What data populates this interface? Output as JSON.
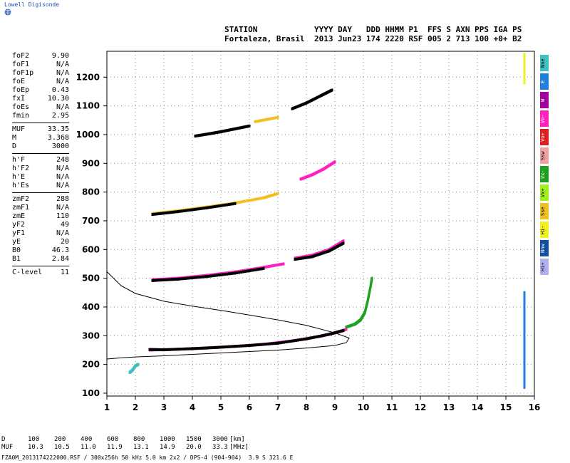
{
  "app": {
    "logo_text": "Lowell Digisonde"
  },
  "header": {
    "line1_label": "STATION",
    "line1_cols": "YYYY DAY   DDD HHMM P1  FFS S AXN PPS IGA PS",
    "station_name": "Fortaleza, Brasil",
    "line2_values": "2013 Jun23 174 2220 RSF 005 2 713 100 +0+ B2"
  },
  "params": {
    "group1": [
      {
        "name": "foF2",
        "value": "9.90"
      },
      {
        "name": "foF1",
        "value": "N/A"
      },
      {
        "name": "foF1p",
        "value": "N/A"
      },
      {
        "name": "foE",
        "value": "N/A"
      },
      {
        "name": "foEp",
        "value": "0.43"
      },
      {
        "name": "fxI",
        "value": "10.30"
      },
      {
        "name": "foEs",
        "value": "N/A"
      },
      {
        "name": "fmin",
        "value": "2.95"
      }
    ],
    "group2": [
      {
        "name": "MUF",
        "value": "33.35"
      },
      {
        "name": "M",
        "value": "3.368"
      },
      {
        "name": "D",
        "value": "3000"
      }
    ],
    "group3": [
      {
        "name": "h'F",
        "value": "248"
      },
      {
        "name": "h'F2",
        "value": "N/A"
      },
      {
        "name": "h'E",
        "value": "N/A"
      },
      {
        "name": "h'Es",
        "value": "N/A"
      }
    ],
    "group4": [
      {
        "name": "zmF2",
        "value": "288"
      },
      {
        "name": "zmF1",
        "value": "N/A"
      },
      {
        "name": "zmE",
        "value": "110"
      },
      {
        "name": "yF2",
        "value": "49"
      },
      {
        "name": "yF1",
        "value": "N/A"
      },
      {
        "name": "yE",
        "value": "20"
      },
      {
        "name": "B0",
        "value": "46.3"
      },
      {
        "name": "B1",
        "value": "2.84"
      }
    ],
    "group5": [
      {
        "name": "C-level",
        "value": "11"
      }
    ]
  },
  "legend": [
    {
      "label": "Nne",
      "color": "#40c0c0"
    },
    {
      "label": "E",
      "color": "#2080e0"
    },
    {
      "label": "W",
      "color": "#a000a0"
    },
    {
      "label": "Vo-",
      "color": "#ff20c0"
    },
    {
      "label": "Vo+",
      "color": "#e02020"
    },
    {
      "label": "Ssw",
      "color": "#f0a0a0"
    },
    {
      "label": "Vx-",
      "color": "#20a020"
    },
    {
      "label": "Vx+",
      "color": "#a0f020"
    },
    {
      "label": "Sse",
      "color": "#f0c020"
    },
    {
      "label": "Hi-",
      "color": "#f0f020"
    },
    {
      "label": "Nnw",
      "color": "#1050a0"
    },
    {
      "label": "Hi+",
      "color": "#b0b0f0"
    }
  ],
  "bottom": {
    "d_label": "D",
    "d_values": [
      "100",
      "200",
      "400",
      "600",
      "800",
      "1000",
      "1500",
      "3000"
    ],
    "d_unit": "[km]",
    "muf_label": "MUF",
    "muf_values": [
      "10.3",
      "10.5",
      "11.0",
      "11.9",
      "13.1",
      "14.9",
      "20.0",
      "33.3"
    ],
    "muf_unit": "[MHz]",
    "footer": "FZA0M_2013174222000.RSF / 300x256h 50 kHz 5.0 km 2x2 / DPS-4 (904-904)  3.9 S 321.6 E"
  },
  "chart_data": {
    "type": "scatter",
    "xlim": [
      1,
      16
    ],
    "ylim": [
      90,
      1290
    ],
    "x_ticks": [
      1,
      2,
      3,
      4,
      5,
      6,
      7,
      8,
      9,
      10,
      11,
      12,
      13,
      14,
      15,
      16
    ],
    "y_ticks": [
      100,
      200,
      300,
      400,
      500,
      600,
      700,
      800,
      900,
      1000,
      1100,
      1200
    ],
    "grid": true,
    "profile": [
      [
        1.0,
        523
      ],
      [
        1.5,
        474
      ],
      [
        2.0,
        447
      ],
      [
        3.0,
        420
      ],
      [
        4.0,
        403
      ],
      [
        5.0,
        388
      ],
      [
        6.0,
        372
      ],
      [
        7.0,
        355
      ],
      [
        8.0,
        336
      ],
      [
        9.0,
        310
      ],
      [
        9.5,
        292
      ],
      [
        9.4,
        276
      ],
      [
        9.0,
        266
      ],
      [
        8.0,
        257
      ],
      [
        7.0,
        250
      ],
      [
        6.0,
        245
      ],
      [
        5.0,
        240
      ],
      [
        4.0,
        235
      ],
      [
        3.0,
        230
      ],
      [
        2.0,
        226
      ],
      [
        1.5,
        223
      ],
      [
        1.0,
        219
      ]
    ],
    "traces": [
      {
        "color": "#ff20c0",
        "points": [
          [
            2.5,
            250
          ],
          [
            3.5,
            253
          ],
          [
            4.5,
            257
          ],
          [
            5.5,
            263
          ],
          [
            6.5,
            270
          ],
          [
            7.5,
            282
          ],
          [
            8.5,
            298
          ],
          [
            9.0,
            310
          ],
          [
            9.4,
            322
          ]
        ]
      },
      {
        "color": "#000000",
        "points": [
          [
            2.5,
            252
          ],
          [
            3.0,
            251
          ],
          [
            4.0,
            255
          ],
          [
            5.0,
            260
          ],
          [
            6.0,
            266
          ],
          [
            7.0,
            274
          ],
          [
            8.0,
            289
          ],
          [
            8.8,
            305
          ],
          [
            9.3,
            318
          ]
        ]
      },
      {
        "color": "#20a020",
        "points": [
          [
            9.4,
            330
          ],
          [
            9.7,
            340
          ],
          [
            9.9,
            355
          ],
          [
            10.05,
            380
          ],
          [
            10.15,
            420
          ],
          [
            10.25,
            470
          ],
          [
            10.3,
            500
          ]
        ]
      },
      {
        "color": "#ff20c0",
        "points": [
          [
            2.6,
            495
          ],
          [
            3.5,
            500
          ],
          [
            4.5,
            510
          ],
          [
            5.5,
            522
          ],
          [
            6.5,
            538
          ],
          [
            7.2,
            550
          ]
        ]
      },
      {
        "color": "#000000",
        "points": [
          [
            2.6,
            492
          ],
          [
            3.5,
            497
          ],
          [
            4.5,
            506
          ],
          [
            5.5,
            518
          ],
          [
            6.5,
            534
          ]
        ]
      },
      {
        "color": "#ff20c0",
        "points": [
          [
            7.6,
            570
          ],
          [
            8.2,
            580
          ],
          [
            8.8,
            600
          ],
          [
            9.3,
            630
          ]
        ]
      },
      {
        "color": "#000000",
        "points": [
          [
            7.6,
            566
          ],
          [
            8.2,
            575
          ],
          [
            8.8,
            595
          ],
          [
            9.3,
            622
          ]
        ]
      },
      {
        "color": "#f0c020",
        "points": [
          [
            2.6,
            725
          ],
          [
            3.5,
            735
          ],
          [
            4.5,
            748
          ],
          [
            5.5,
            762
          ],
          [
            6.5,
            780
          ],
          [
            7.0,
            795
          ]
        ]
      },
      {
        "color": "#000000",
        "points": [
          [
            2.6,
            722
          ],
          [
            3.5,
            732
          ],
          [
            4.5,
            745
          ],
          [
            5.5,
            760
          ]
        ]
      },
      {
        "color": "#ff20c0",
        "points": [
          [
            7.8,
            845
          ],
          [
            8.2,
            860
          ],
          [
            8.6,
            880
          ],
          [
            9.0,
            905
          ]
        ]
      },
      {
        "color": "#000000",
        "points": [
          [
            4.1,
            995
          ],
          [
            4.6,
            1003
          ],
          [
            5.0,
            1010
          ],
          [
            5.5,
            1020
          ],
          [
            6.0,
            1030
          ]
        ]
      },
      {
        "color": "#f0c020",
        "points": [
          [
            6.2,
            1045
          ],
          [
            7.0,
            1060
          ]
        ]
      },
      {
        "color": "#000000",
        "points": [
          [
            7.5,
            1090
          ],
          [
            8.0,
            1110
          ],
          [
            8.5,
            1135
          ],
          [
            8.9,
            1155
          ]
        ]
      },
      {
        "color": "#40c0c0",
        "points": [
          [
            1.8,
            172
          ],
          [
            1.9,
            180
          ],
          [
            2.0,
            195
          ],
          [
            2.1,
            200
          ]
        ]
      },
      {
        "color": "#f0f020",
        "points": [
          [
            15.65,
            1180
          ],
          [
            15.65,
            1250
          ],
          [
            15.65,
            1280
          ]
        ]
      },
      {
        "color": "#2080e0",
        "points": [
          [
            15.65,
            120
          ],
          [
            15.65,
            180
          ],
          [
            15.65,
            280
          ],
          [
            15.65,
            360
          ],
          [
            15.65,
            450
          ]
        ]
      }
    ]
  }
}
